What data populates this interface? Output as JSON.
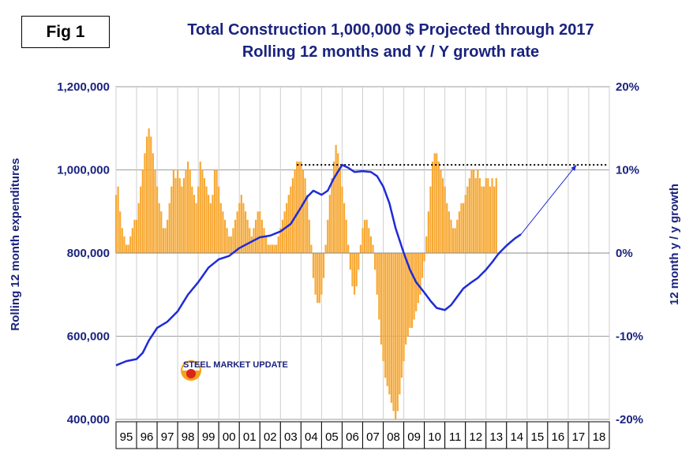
{
  "figure_label": "Fig 1",
  "title_line1": "Total Construction 1,000,000 $ Projected through 2017",
  "title_line2": "Rolling 12 months and Y / Y growth rate",
  "logo_text": "STEEL MARKET UPDATE",
  "colors": {
    "title": "#1a237e",
    "line": "#1f2bd6",
    "bars": "#f7a935",
    "projection": "#1f2bd6",
    "grid": "#9e9e9e",
    "plot_border": "#555555"
  },
  "chart_data": {
    "type": "bar+line",
    "title": "Total Construction 1,000,000 $ Projected through 2017",
    "subtitle": "Rolling 12 months and Y / Y growth rate",
    "x_tick_labels": [
      "95",
      "96",
      "97",
      "98",
      "99",
      "00",
      "01",
      "02",
      "03",
      "04",
      "05",
      "06",
      "07",
      "08",
      "09",
      "10",
      "11",
      "12",
      "13",
      "14",
      "15",
      "16",
      "17",
      "18"
    ],
    "x_range_years": [
      1995,
      2019
    ],
    "left_axis": {
      "label": "Rolling 12 month expenditures",
      "ylim": [
        400000,
        1200000
      ],
      "ticks": [
        "400,000",
        "600,000",
        "800,000",
        "1,000,000",
        "1,200,000"
      ]
    },
    "right_axis": {
      "label": "12 month y / y growth",
      "ylim": [
        -20,
        20
      ],
      "ticks": [
        "-20%",
        "-10%",
        "0%",
        "10%",
        "20%"
      ]
    },
    "grid": true,
    "line_series": {
      "axis": "left",
      "points": [
        [
          1995.0,
          530000
        ],
        [
          1995.5,
          540000
        ],
        [
          1996.0,
          545000
        ],
        [
          1996.3,
          560000
        ],
        [
          1996.6,
          590000
        ],
        [
          1997.0,
          620000
        ],
        [
          1997.5,
          635000
        ],
        [
          1998.0,
          660000
        ],
        [
          1998.5,
          700000
        ],
        [
          1999.0,
          730000
        ],
        [
          1999.5,
          765000
        ],
        [
          2000.0,
          785000
        ],
        [
          2000.5,
          793000
        ],
        [
          2001.0,
          812000
        ],
        [
          2001.5,
          825000
        ],
        [
          2002.0,
          838000
        ],
        [
          2002.5,
          842000
        ],
        [
          2003.0,
          852000
        ],
        [
          2003.5,
          870000
        ],
        [
          2004.0,
          910000
        ],
        [
          2004.3,
          935000
        ],
        [
          2004.6,
          950000
        ],
        [
          2005.0,
          940000
        ],
        [
          2005.3,
          950000
        ],
        [
          2005.6,
          980000
        ],
        [
          2006.0,
          1012000
        ],
        [
          2006.3,
          1005000
        ],
        [
          2006.6,
          995000
        ],
        [
          2007.0,
          997000
        ],
        [
          2007.4,
          995000
        ],
        [
          2007.7,
          985000
        ],
        [
          2008.0,
          960000
        ],
        [
          2008.3,
          920000
        ],
        [
          2008.6,
          860000
        ],
        [
          2009.0,
          800000
        ],
        [
          2009.3,
          760000
        ],
        [
          2009.6,
          730000
        ],
        [
          2010.0,
          705000
        ],
        [
          2010.3,
          685000
        ],
        [
          2010.6,
          668000
        ],
        [
          2011.0,
          663000
        ],
        [
          2011.3,
          675000
        ],
        [
          2011.6,
          695000
        ],
        [
          2011.9,
          715000
        ],
        [
          2012.3,
          730000
        ],
        [
          2012.6,
          740000
        ],
        [
          2013.0,
          760000
        ],
        [
          2013.3,
          778000
        ],
        [
          2013.6,
          798000
        ],
        [
          2014.0,
          818000
        ],
        [
          2014.4,
          835000
        ],
        [
          2014.7,
          845000
        ]
      ]
    },
    "bar_series": {
      "axis": "right",
      "unit": "%",
      "points": [
        [
          1995.0,
          7
        ],
        [
          1995.1,
          8
        ],
        [
          1995.2,
          5
        ],
        [
          1995.3,
          3
        ],
        [
          1995.4,
          2
        ],
        [
          1995.5,
          1
        ],
        [
          1995.6,
          1
        ],
        [
          1995.7,
          2
        ],
        [
          1995.8,
          3
        ],
        [
          1995.9,
          4
        ],
        [
          1996.0,
          4
        ],
        [
          1996.1,
          6
        ],
        [
          1996.2,
          8
        ],
        [
          1996.3,
          10
        ],
        [
          1996.4,
          12
        ],
        [
          1996.5,
          14
        ],
        [
          1996.6,
          15
        ],
        [
          1996.7,
          14
        ],
        [
          1996.8,
          12
        ],
        [
          1996.9,
          10
        ],
        [
          1997.0,
          8
        ],
        [
          1997.1,
          6
        ],
        [
          1997.2,
          5
        ],
        [
          1997.3,
          3
        ],
        [
          1997.4,
          3
        ],
        [
          1997.5,
          4
        ],
        [
          1997.6,
          6
        ],
        [
          1997.7,
          8
        ],
        [
          1997.8,
          10
        ],
        [
          1997.9,
          9
        ],
        [
          1998.0,
          10
        ],
        [
          1998.1,
          9
        ],
        [
          1998.2,
          8
        ],
        [
          1998.3,
          9
        ],
        [
          1998.4,
          10
        ],
        [
          1998.5,
          11
        ],
        [
          1998.6,
          10
        ],
        [
          1998.7,
          8
        ],
        [
          1998.8,
          7
        ],
        [
          1998.9,
          6
        ],
        [
          1999.0,
          8
        ],
        [
          1999.1,
          11
        ],
        [
          1999.2,
          10
        ],
        [
          1999.3,
          9
        ],
        [
          1999.4,
          8
        ],
        [
          1999.5,
          7
        ],
        [
          1999.6,
          6
        ],
        [
          1999.7,
          7
        ],
        [
          1999.8,
          10
        ],
        [
          1999.9,
          10
        ],
        [
          2000.0,
          8
        ],
        [
          2000.1,
          6
        ],
        [
          2000.2,
          5
        ],
        [
          2000.3,
          4
        ],
        [
          2000.4,
          3
        ],
        [
          2000.5,
          2
        ],
        [
          2000.6,
          2
        ],
        [
          2000.7,
          3
        ],
        [
          2000.8,
          4
        ],
        [
          2000.9,
          5
        ],
        [
          2001.0,
          6
        ],
        [
          2001.1,
          7
        ],
        [
          2001.2,
          6
        ],
        [
          2001.3,
          5
        ],
        [
          2001.4,
          4
        ],
        [
          2001.5,
          3
        ],
        [
          2001.6,
          2
        ],
        [
          2001.7,
          3
        ],
        [
          2001.8,
          4
        ],
        [
          2001.9,
          5
        ],
        [
          2002.0,
          5
        ],
        [
          2002.1,
          4
        ],
        [
          2002.2,
          3
        ],
        [
          2002.3,
          2
        ],
        [
          2002.4,
          1
        ],
        [
          2002.5,
          1
        ],
        [
          2002.6,
          1
        ],
        [
          2002.7,
          1
        ],
        [
          2002.8,
          1
        ],
        [
          2002.9,
          2
        ],
        [
          2003.0,
          3
        ],
        [
          2003.1,
          4
        ],
        [
          2003.2,
          5
        ],
        [
          2003.3,
          6
        ],
        [
          2003.4,
          7
        ],
        [
          2003.5,
          8
        ],
        [
          2003.6,
          9
        ],
        [
          2003.7,
          10
        ],
        [
          2003.8,
          11
        ],
        [
          2003.9,
          11
        ],
        [
          2004.0,
          11
        ],
        [
          2004.1,
          10
        ],
        [
          2004.2,
          9
        ],
        [
          2004.3,
          7
        ],
        [
          2004.4,
          4
        ],
        [
          2004.5,
          1
        ],
        [
          2004.6,
          -3
        ],
        [
          2004.7,
          -5
        ],
        [
          2004.8,
          -6
        ],
        [
          2004.9,
          -6
        ],
        [
          2005.0,
          -5
        ],
        [
          2005.1,
          -3
        ],
        [
          2005.2,
          1
        ],
        [
          2005.3,
          4
        ],
        [
          2005.4,
          7
        ],
        [
          2005.5,
          9
        ],
        [
          2005.6,
          11
        ],
        [
          2005.7,
          13
        ],
        [
          2005.8,
          12
        ],
        [
          2005.9,
          10
        ],
        [
          2006.0,
          8
        ],
        [
          2006.1,
          6
        ],
        [
          2006.2,
          4
        ],
        [
          2006.3,
          1
        ],
        [
          2006.4,
          -2
        ],
        [
          2006.5,
          -4
        ],
        [
          2006.6,
          -5
        ],
        [
          2006.7,
          -4
        ],
        [
          2006.8,
          -2
        ],
        [
          2006.9,
          1
        ],
        [
          2007.0,
          3
        ],
        [
          2007.1,
          4
        ],
        [
          2007.2,
          4
        ],
        [
          2007.3,
          3
        ],
        [
          2007.4,
          2
        ],
        [
          2007.5,
          1
        ],
        [
          2007.6,
          -2
        ],
        [
          2007.7,
          -5
        ],
        [
          2007.8,
          -8
        ],
        [
          2007.9,
          -11
        ],
        [
          2008.0,
          -13
        ],
        [
          2008.1,
          -15
        ],
        [
          2008.2,
          -16
        ],
        [
          2008.3,
          -17
        ],
        [
          2008.4,
          -18
        ],
        [
          2008.5,
          -19
        ],
        [
          2008.6,
          -20
        ],
        [
          2008.7,
          -19
        ],
        [
          2008.8,
          -17
        ],
        [
          2008.9,
          -15
        ],
        [
          2009.0,
          -13
        ],
        [
          2009.1,
          -11
        ],
        [
          2009.2,
          -10
        ],
        [
          2009.3,
          -9
        ],
        [
          2009.4,
          -9
        ],
        [
          2009.5,
          -8
        ],
        [
          2009.6,
          -7
        ],
        [
          2009.7,
          -6
        ],
        [
          2009.8,
          -5
        ],
        [
          2009.9,
          -3
        ],
        [
          2010.0,
          -1
        ],
        [
          2010.1,
          2
        ],
        [
          2010.2,
          5
        ],
        [
          2010.3,
          8
        ],
        [
          2010.4,
          11
        ],
        [
          2010.5,
          12
        ],
        [
          2010.6,
          12
        ],
        [
          2010.7,
          11
        ],
        [
          2010.8,
          10
        ],
        [
          2010.9,
          9
        ],
        [
          2011.0,
          8
        ],
        [
          2011.1,
          6
        ],
        [
          2011.2,
          5
        ],
        [
          2011.3,
          4
        ],
        [
          2011.4,
          3
        ],
        [
          2011.5,
          3
        ],
        [
          2011.6,
          4
        ],
        [
          2011.7,
          5
        ],
        [
          2011.8,
          6
        ],
        [
          2011.9,
          6
        ],
        [
          2012.0,
          7
        ],
        [
          2012.1,
          8
        ],
        [
          2012.2,
          9
        ],
        [
          2012.3,
          10
        ],
        [
          2012.4,
          10
        ],
        [
          2012.5,
          9
        ],
        [
          2012.6,
          10
        ],
        [
          2012.7,
          9
        ],
        [
          2012.8,
          8
        ],
        [
          2012.9,
          8
        ],
        [
          2013.0,
          9
        ],
        [
          2013.1,
          9
        ],
        [
          2013.2,
          8
        ],
        [
          2013.3,
          9
        ],
        [
          2013.4,
          8
        ],
        [
          2013.5,
          9
        ]
      ],
      "x_offset_note": "bars aligned from 1995 to mid 2014"
    },
    "dotted_reference": {
      "axis": "left",
      "y": 1012000,
      "x_from": 2003.8,
      "x_to": 2018.9
    },
    "projection_arrow": {
      "axis": "left",
      "from": [
        2014.7,
        845000
      ],
      "to": [
        2017.4,
        1012000
      ]
    }
  }
}
